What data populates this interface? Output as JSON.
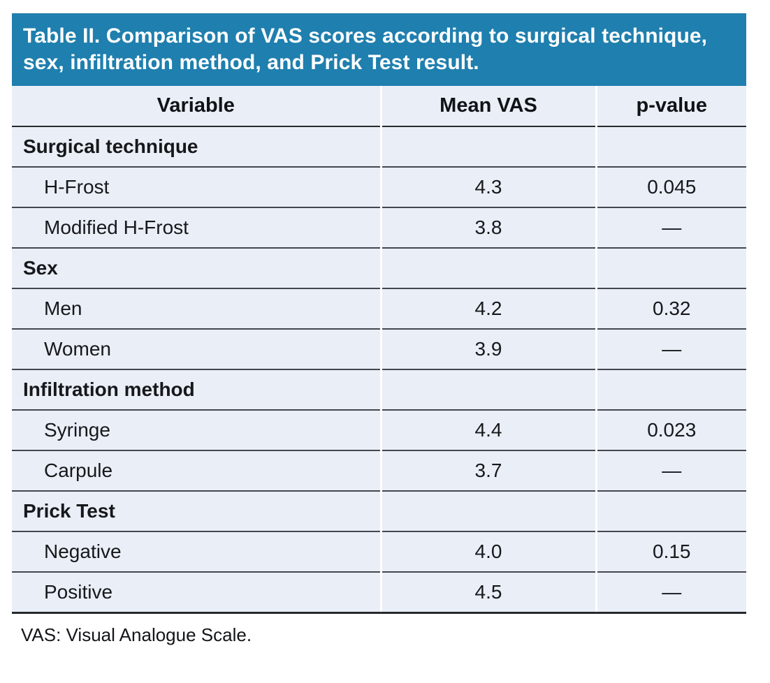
{
  "table": {
    "title": "Table II. Comparison of VAS scores according to surgical technique, sex, infiltration method, and Prick Test result.",
    "columns": [
      "Variable",
      "Mean VAS",
      "p-value"
    ],
    "sections": [
      {
        "label": "Surgical technique",
        "rows": [
          {
            "variable": "H-Frost",
            "mean_vas": "4.3",
            "p_value": "0.045"
          },
          {
            "variable": "Modified H-Frost",
            "mean_vas": "3.8",
            "p_value": "—"
          }
        ]
      },
      {
        "label": "Sex",
        "rows": [
          {
            "variable": "Men",
            "mean_vas": "4.2",
            "p_value": "0.32"
          },
          {
            "variable": "Women",
            "mean_vas": "3.9",
            "p_value": "—"
          }
        ]
      },
      {
        "label": "Infiltration method",
        "rows": [
          {
            "variable": "Syringe",
            "mean_vas": "4.4",
            "p_value": "0.023"
          },
          {
            "variable": "Carpule",
            "mean_vas": "3.7",
            "p_value": "—"
          }
        ]
      },
      {
        "label": "Prick Test",
        "rows": [
          {
            "variable": "Negative",
            "mean_vas": "4.0",
            "p_value": "0.15"
          },
          {
            "variable": "Positive",
            "mean_vas": "4.5",
            "p_value": "—"
          }
        ]
      }
    ],
    "footnote": "VAS: Visual Analogue Scale.",
    "colors": {
      "title_bg": "#1f7fae",
      "title_text": "#ffffff",
      "row_bg": "#eaeef6",
      "rule": "#43474d",
      "strong_rule": "#26292d"
    }
  }
}
